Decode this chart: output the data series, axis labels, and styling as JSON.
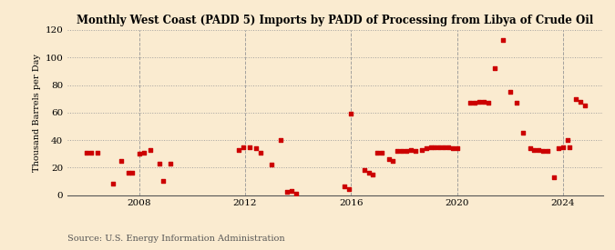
{
  "title": "Monthly West Coast (PADD 5) Imports by PADD of Processing from Libya of Crude Oil",
  "ylabel": "Thousand Barrels per Day",
  "source": "Source: U.S. Energy Information Administration",
  "background_color": "#faebd0",
  "dot_color": "#cc0000",
  "ylim": [
    0,
    120
  ],
  "yticks": [
    0,
    20,
    40,
    60,
    80,
    100,
    120
  ],
  "xlim": [
    2005.3,
    2025.5
  ],
  "xticks": [
    2008,
    2012,
    2016,
    2020,
    2024
  ],
  "data_points": [
    [
      2006.0,
      31
    ],
    [
      2006.17,
      31
    ],
    [
      2006.42,
      31
    ],
    [
      2007.0,
      8
    ],
    [
      2007.33,
      25
    ],
    [
      2007.58,
      16
    ],
    [
      2007.75,
      16
    ],
    [
      2008.0,
      30
    ],
    [
      2008.17,
      31
    ],
    [
      2008.42,
      33
    ],
    [
      2008.75,
      23
    ],
    [
      2008.92,
      10
    ],
    [
      2009.17,
      23
    ],
    [
      2011.75,
      33
    ],
    [
      2011.92,
      35
    ],
    [
      2012.17,
      35
    ],
    [
      2012.42,
      34
    ],
    [
      2012.58,
      31
    ],
    [
      2013.0,
      22
    ],
    [
      2013.33,
      40
    ],
    [
      2013.58,
      2
    ],
    [
      2013.75,
      3
    ],
    [
      2013.92,
      1
    ],
    [
      2015.75,
      6
    ],
    [
      2015.92,
      4
    ],
    [
      2016.0,
      59
    ],
    [
      2016.5,
      18
    ],
    [
      2016.67,
      16
    ],
    [
      2016.83,
      15
    ],
    [
      2017.0,
      31
    ],
    [
      2017.17,
      31
    ],
    [
      2017.42,
      26
    ],
    [
      2017.58,
      25
    ],
    [
      2017.75,
      32
    ],
    [
      2017.92,
      32
    ],
    [
      2018.08,
      32
    ],
    [
      2018.25,
      33
    ],
    [
      2018.42,
      32
    ],
    [
      2018.67,
      33
    ],
    [
      2018.83,
      34
    ],
    [
      2019.0,
      35
    ],
    [
      2019.17,
      35
    ],
    [
      2019.33,
      35
    ],
    [
      2019.5,
      35
    ],
    [
      2019.67,
      35
    ],
    [
      2019.83,
      34
    ],
    [
      2020.0,
      34
    ],
    [
      2020.5,
      67
    ],
    [
      2020.67,
      67
    ],
    [
      2020.83,
      68
    ],
    [
      2021.0,
      68
    ],
    [
      2021.17,
      67
    ],
    [
      2021.42,
      92
    ],
    [
      2021.75,
      113
    ],
    [
      2022.0,
      75
    ],
    [
      2022.25,
      67
    ],
    [
      2022.5,
      45
    ],
    [
      2022.75,
      34
    ],
    [
      2022.92,
      33
    ],
    [
      2023.08,
      33
    ],
    [
      2023.25,
      32
    ],
    [
      2023.42,
      32
    ],
    [
      2023.67,
      13
    ],
    [
      2023.83,
      34
    ],
    [
      2024.0,
      35
    ],
    [
      2024.17,
      40
    ],
    [
      2024.25,
      35
    ],
    [
      2024.5,
      70
    ],
    [
      2024.67,
      68
    ],
    [
      2024.83,
      65
    ]
  ]
}
